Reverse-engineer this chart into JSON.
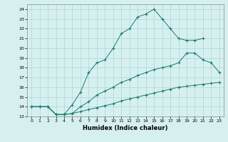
{
  "xlabel": "Humidex (Indice chaleur)",
  "bg_color": "#d6f0f0",
  "grid_color": "#aed4d4",
  "line_color": "#1a7a6e",
  "xlim": [
    -0.5,
    23.5
  ],
  "ylim": [
    13,
    24.5
  ],
  "xticks": [
    0,
    1,
    2,
    3,
    4,
    5,
    6,
    7,
    8,
    9,
    10,
    11,
    12,
    13,
    14,
    15,
    16,
    17,
    18,
    19,
    20,
    21,
    22,
    23
  ],
  "yticks": [
    13,
    14,
    15,
    16,
    17,
    18,
    19,
    20,
    21,
    22,
    23,
    24
  ],
  "line1_x": [
    0,
    1,
    2,
    3,
    4,
    5,
    6,
    7,
    8,
    9,
    10,
    11,
    12,
    13,
    14,
    15,
    16,
    17,
    18,
    19,
    20,
    21
  ],
  "line1_y": [
    14.0,
    14.0,
    14.0,
    13.2,
    13.2,
    14.2,
    15.5,
    17.5,
    18.5,
    18.8,
    20.0,
    21.5,
    22.0,
    23.2,
    23.5,
    24.0,
    23.0,
    22.0,
    21.0,
    20.8,
    20.8,
    21.0
  ],
  "line2_x": [
    0,
    1,
    2,
    3,
    4,
    5,
    6,
    7,
    8,
    9,
    10,
    11,
    12,
    13,
    14,
    15,
    16,
    17,
    18,
    19,
    20,
    21,
    22,
    23
  ],
  "line2_y": [
    14.0,
    14.0,
    14.0,
    13.2,
    13.2,
    13.3,
    14.0,
    14.5,
    15.2,
    15.6,
    16.0,
    16.5,
    16.8,
    17.2,
    17.5,
    17.8,
    18.0,
    18.2,
    18.5,
    19.5,
    19.5,
    18.8,
    18.5,
    17.5
  ],
  "line3_x": [
    0,
    1,
    2,
    3,
    4,
    5,
    6,
    7,
    8,
    9,
    10,
    11,
    12,
    13,
    14,
    15,
    16,
    17,
    18,
    19,
    20,
    21,
    22,
    23
  ],
  "line3_y": [
    14.0,
    14.0,
    14.0,
    13.2,
    13.2,
    13.3,
    13.5,
    13.7,
    13.9,
    14.1,
    14.3,
    14.6,
    14.8,
    15.0,
    15.2,
    15.4,
    15.6,
    15.8,
    16.0,
    16.1,
    16.2,
    16.3,
    16.4,
    16.5
  ]
}
